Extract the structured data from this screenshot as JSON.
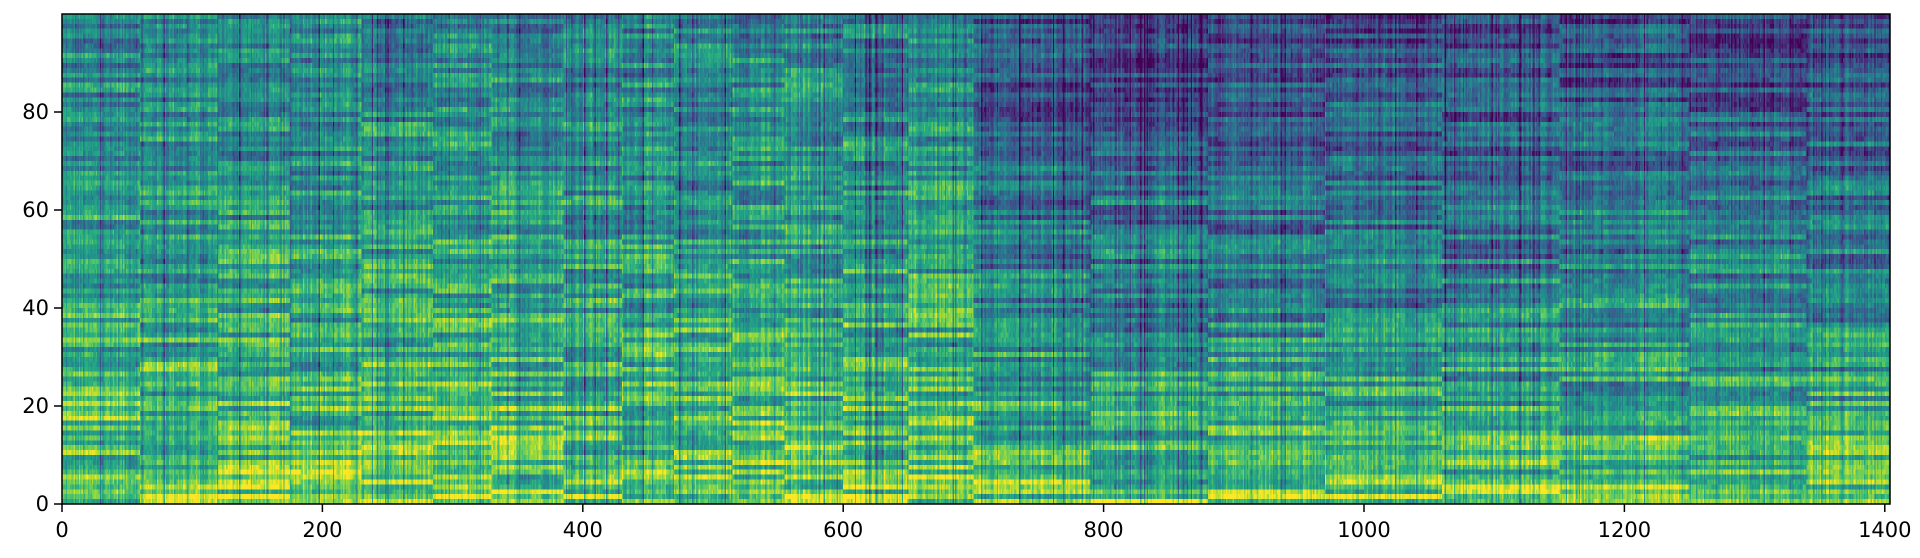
{
  "chart_data": {
    "type": "heatmap",
    "title": "",
    "xlabel": "",
    "ylabel": "",
    "xlim": [
      0,
      1404
    ],
    "ylim": [
      0,
      100
    ],
    "x_ticks": [
      {
        "value": 0,
        "label": "0"
      },
      {
        "value": 200,
        "label": "200"
      },
      {
        "value": 400,
        "label": "400"
      },
      {
        "value": 600,
        "label": "600"
      },
      {
        "value": 800,
        "label": "800"
      },
      {
        "value": 1000,
        "label": "1000"
      },
      {
        "value": 1200,
        "label": "1200"
      },
      {
        "value": 1400,
        "label": "1400"
      }
    ],
    "y_ticks": [
      {
        "value": 0,
        "label": "0"
      },
      {
        "value": 20,
        "label": "20"
      },
      {
        "value": 40,
        "label": "40"
      },
      {
        "value": 60,
        "label": "60"
      },
      {
        "value": 80,
        "label": "80"
      }
    ],
    "grid": false,
    "colormap": "viridis",
    "colors": [
      "#440154",
      "#3b528b",
      "#21918c",
      "#5ec962",
      "#fde725"
    ],
    "rows": 100,
    "columns": 1404,
    "segment_boundaries": [
      0,
      60,
      120,
      175,
      230,
      285,
      330,
      385,
      430,
      470,
      515,
      555,
      600,
      650,
      700,
      790,
      880,
      970,
      1060,
      1150,
      1250,
      1340,
      1404
    ],
    "intensity_profile": {
      "low_rows_mean": 0.82,
      "high_rows_mean_first_half": 0.45,
      "high_rows_mean_second_half": 0.22,
      "second_half_start": 700
    }
  }
}
